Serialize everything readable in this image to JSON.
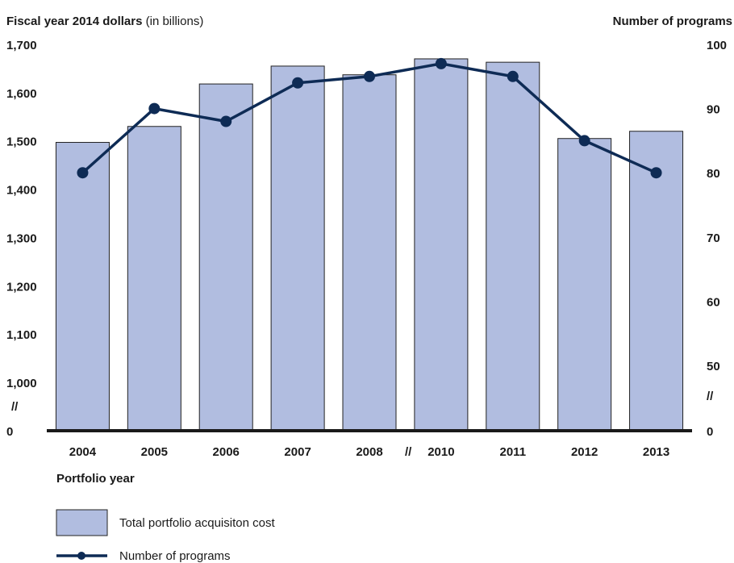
{
  "chart_data": {
    "type": "bar_line",
    "y_label": "Fiscal year 2014 dollars",
    "y_label_unit": "(in billions)",
    "y2_label": "Number of programs",
    "x_label": "Portfolio year",
    "categories": [
      "2004",
      "2005",
      "2006",
      "2007",
      "2008",
      "2010",
      "2011",
      "2012",
      "2013"
    ],
    "series": [
      {
        "name": "Total portfolio acquisiton cost",
        "type": "bar",
        "color": "#b1bde0",
        "values": [
          1497,
          1530,
          1618,
          1655,
          1637,
          1670,
          1663,
          1505,
          1520
        ]
      },
      {
        "name": "Number of programs",
        "type": "line",
        "axis": "y2",
        "color": "#0e2b55",
        "values": [
          80,
          90,
          88,
          94,
          95,
          97,
          95,
          85,
          80
        ]
      }
    ],
    "ylim": [
      0,
      1700
    ],
    "y_break": [
      0,
      1000
    ],
    "yticks": [
      0,
      {
        "value": 1000,
        "label": "1,000"
      },
      {
        "value": 1100,
        "label": "1,100"
      },
      {
        "value": 1200,
        "label": "1,200"
      },
      {
        "value": 1300,
        "label": "1,300"
      },
      {
        "value": 1400,
        "label": "1,400"
      },
      {
        "value": 1500,
        "label": "1,500"
      },
      {
        "value": 1600,
        "label": "1,600"
      },
      {
        "value": 1700,
        "label": "1,700"
      }
    ],
    "y2lim": [
      0,
      100
    ],
    "y2_break": [
      0,
      50
    ],
    "y2ticks": [
      0,
      50,
      60,
      70,
      80,
      90,
      100
    ]
  }
}
